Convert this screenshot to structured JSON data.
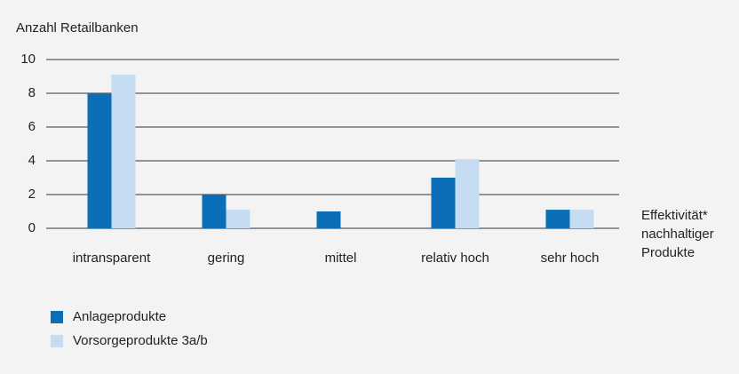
{
  "chart_data": {
    "type": "bar",
    "y_label": "Anzahl Retailbanken",
    "x_label": "Effektivität* nachhaltiger Produkte",
    "categories": [
      "intransparent",
      "gering",
      "mittel",
      "relativ hoch",
      "sehr hoch"
    ],
    "series": [
      {
        "name": "Anlageprodukte",
        "color": "#0a6fb7",
        "values": [
          8,
          2,
          1,
          3,
          1.1
        ]
      },
      {
        "name": "Vorsorgeprodukte 3a/b",
        "color": "#c6dcf2",
        "values": [
          9.1,
          1.1,
          null,
          4.1,
          1.1
        ]
      }
    ],
    "ylim": [
      0,
      10
    ],
    "yticks": [
      0,
      2,
      4,
      6,
      8,
      10
    ],
    "grid": true
  }
}
